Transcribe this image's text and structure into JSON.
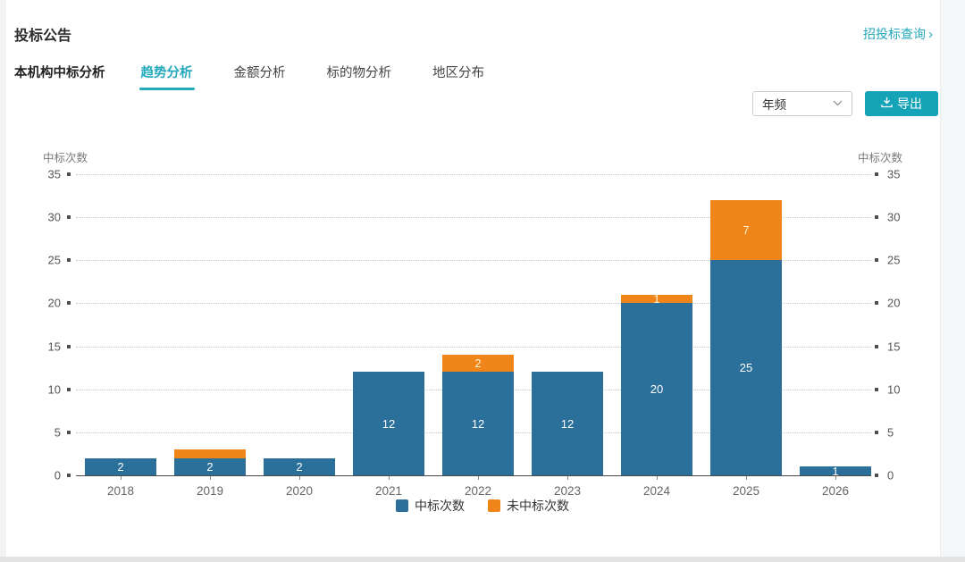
{
  "page": {
    "title": "投标公告",
    "top_link": {
      "label": "招投标查询",
      "chevron": "›"
    },
    "subtitle": "本机构中标分析",
    "tabs": [
      {
        "label": "趋势分析",
        "active": true
      },
      {
        "label": "金额分析",
        "active": false
      },
      {
        "label": "标的物分析",
        "active": false
      },
      {
        "label": "地区分布",
        "active": false
      }
    ],
    "controls": {
      "frequency_select_value": "年频",
      "export_label": "导出",
      "export_icon": "download-icon",
      "select_icon": "chevron-down-icon"
    }
  },
  "colors": {
    "accent_teal": "#22a9bc",
    "button_teal": "#15a3b8",
    "bar_blue": "#2b6f9b",
    "bar_orange": "#f08619"
  },
  "chart_data": {
    "type": "bar",
    "stacked": true,
    "categories": [
      "2018",
      "2019",
      "2020",
      "2021",
      "2022",
      "2023",
      "2024",
      "2025",
      "2026"
    ],
    "series": [
      {
        "name": "中标次数",
        "color": "#2b6f9b",
        "label_color": "#ffffff",
        "values": [
          2,
          2,
          2,
          12,
          12,
          12,
          20,
          25,
          1
        ],
        "labels": [
          "2",
          "2",
          "2",
          "12",
          "12",
          "12",
          "20",
          "25",
          "1"
        ]
      },
      {
        "name": "未中标次数",
        "color": "#f08619",
        "label_color": "#fdf3d7",
        "values": [
          0,
          1,
          0,
          0,
          2,
          0,
          1,
          7,
          0
        ],
        "labels": [
          null,
          null,
          null,
          null,
          "2",
          null,
          "1",
          "7",
          null
        ]
      }
    ],
    "y_axis": {
      "label": "中标次数",
      "min": 0,
      "max": 35,
      "tick_step": 5,
      "mirrored_right": true
    },
    "ticks": [
      0,
      5,
      10,
      15,
      20,
      25,
      30,
      35
    ],
    "legend": [
      "中标次数",
      "未中标次数"
    ],
    "legend_position": "bottom",
    "grid": "horizontal-dotted"
  }
}
